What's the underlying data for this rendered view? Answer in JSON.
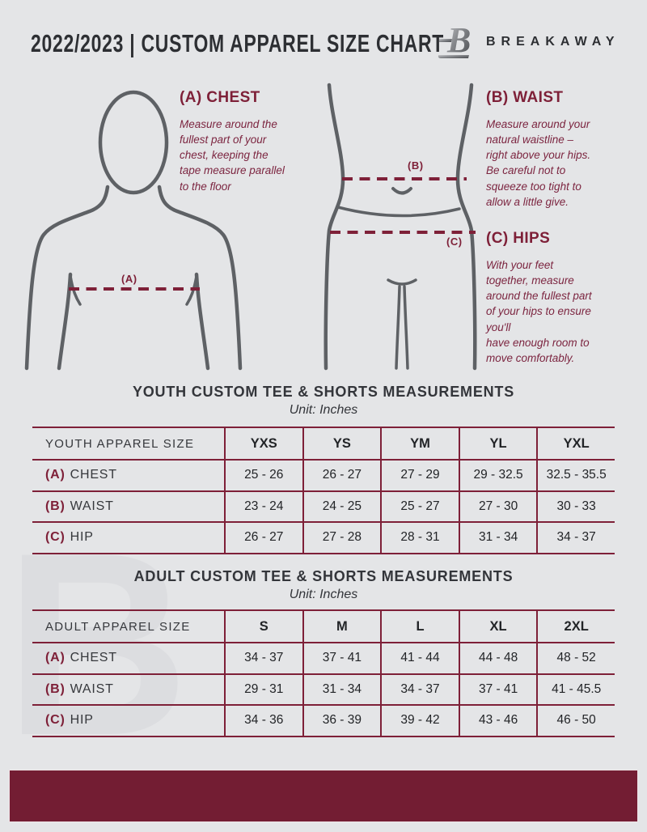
{
  "header": {
    "title": "2022/2023  |  CUSTOM APPAREL SIZE CHART",
    "brand_name": "BREAKAWAY",
    "logo_letter": "B"
  },
  "colors": {
    "accent": "#7E2038",
    "footer_bar": "#731D33",
    "figure_outline": "#5E6165",
    "background": "#E4E5E7"
  },
  "guide": {
    "chest": {
      "heading": "(A) CHEST",
      "marker": "(A)",
      "body": "Measure around the\nfullest part of your\nchest, keeping the\ntape measure parallel\nto the floor"
    },
    "waist": {
      "heading": "(B) WAIST",
      "marker": "(B)",
      "body": "Measure around your\nnatural waistline –\nright above your hips.\nBe careful not to\nsqueeze too tight to\nallow a little give."
    },
    "hips": {
      "heading": "(C) HIPS",
      "marker": "(C)",
      "body": "With your feet\ntogether, measure\naround the fullest part\nof your hips to ensure\nyou'll\nhave enough room to\nmove comfortably."
    }
  },
  "youth_table": {
    "title": "YOUTH CUSTOM TEE & SHORTS MEASUREMENTS",
    "unit": "Unit: Inches",
    "corner": "YOUTH APPAREL SIZE",
    "columns": [
      "YXS",
      "YS",
      "YM",
      "YL",
      "YXL"
    ],
    "rows": [
      {
        "prefix": "(A)",
        "label": "CHEST",
        "values": [
          "25 - 26",
          "26 - 27",
          "27 - 29",
          "29 - 32.5",
          "32.5 - 35.5"
        ]
      },
      {
        "prefix": "(B)",
        "label": "WAIST",
        "values": [
          "23 - 24",
          "24 - 25",
          "25 - 27",
          "27 - 30",
          "30 - 33"
        ]
      },
      {
        "prefix": "(C)",
        "label": "HIP",
        "values": [
          "26 - 27",
          "27 - 28",
          "28 - 31",
          "31 - 34",
          "34 - 37"
        ]
      }
    ]
  },
  "adult_table": {
    "title": "ADULT CUSTOM TEE & SHORTS MEASUREMENTS",
    "unit": "Unit: Inches",
    "corner": "ADULT APPAREL SIZE",
    "columns": [
      "S",
      "M",
      "L",
      "XL",
      "2XL"
    ],
    "rows": [
      {
        "prefix": "(A)",
        "label": "CHEST",
        "values": [
          "34 - 37",
          "37 - 41",
          "41 - 44",
          "44 - 48",
          "48 - 52"
        ]
      },
      {
        "prefix": "(B)",
        "label": "WAIST",
        "values": [
          "29 - 31",
          "31 - 34",
          "34 - 37",
          "37 - 41",
          "41 - 45.5"
        ]
      },
      {
        "prefix": "(C)",
        "label": "HIP",
        "values": [
          "34 - 36",
          "36 - 39",
          "39 - 42",
          "43 - 46",
          "46 - 50"
        ]
      }
    ]
  }
}
